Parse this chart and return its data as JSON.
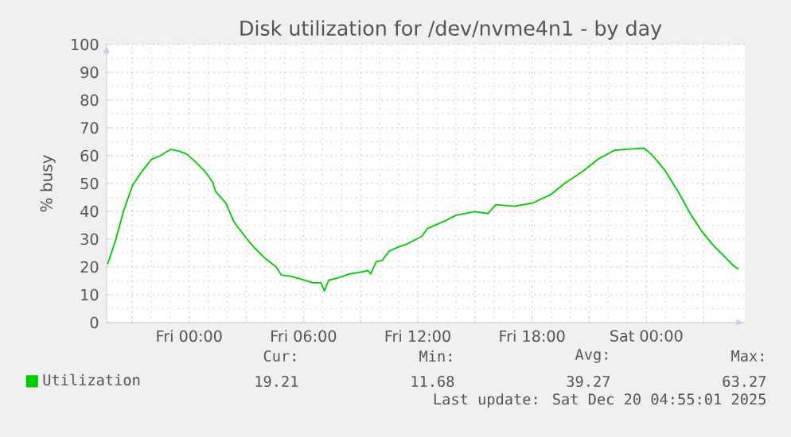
{
  "chart_data": {
    "type": "line",
    "title": "Disk utilization for /dev/nvme4n1 - by day",
    "ylabel": "% busy",
    "x": [
      "2025-12-18T19:43",
      "2025-12-18T20:08",
      "2025-12-18T20:33",
      "2025-12-18T21:02",
      "2025-12-18T21:31",
      "2025-12-18T22:01",
      "2025-12-18T22:29",
      "2025-12-18T23:02",
      "2025-12-18T23:27",
      "2025-12-18T23:52",
      "2025-12-19T00:17",
      "2025-12-19T00:50",
      "2025-12-19T01:14",
      "2025-12-19T01:23",
      "2025-12-19T01:56",
      "2025-12-19T02:21",
      "2025-12-19T02:59",
      "2025-12-19T03:27",
      "2025-12-19T04:01",
      "2025-12-19T04:34",
      "2025-12-19T04:50",
      "2025-12-19T05:23",
      "2025-12-19T06:05",
      "2025-12-19T06:29",
      "2025-12-19T06:55",
      "2025-12-19T07:06",
      "2025-12-19T07:19",
      "2025-12-19T07:52",
      "2025-12-19T08:26",
      "2025-12-19T08:59",
      "2025-12-19T09:23",
      "2025-12-19T09:32",
      "2025-12-19T09:49",
      "2025-12-19T10:08",
      "2025-12-19T10:30",
      "2025-12-19T10:59",
      "2025-12-19T11:23",
      "2025-12-19T12:13",
      "2025-12-19T12:30",
      "2025-12-19T13:28",
      "2025-12-19T14:01",
      "2025-12-19T14:59",
      "2025-12-19T15:41",
      "2025-12-19T16:06",
      "2025-12-19T17:04",
      "2025-12-19T18:02",
      "2025-12-19T19:01",
      "2025-12-19T19:42",
      "2025-12-19T20:40",
      "2025-12-19T21:30",
      "2025-12-19T22:20",
      "2025-12-19T23:10",
      "2025-12-19T23:52",
      "2025-12-20T00:16",
      "2025-12-20T00:58",
      "2025-12-20T01:40",
      "2025-12-20T02:21",
      "2025-12-20T02:54",
      "2025-12-20T03:28",
      "2025-12-20T04:09",
      "2025-12-20T04:34",
      "2025-12-20T04:50"
    ],
    "series": [
      {
        "name": "Utilization",
        "color": "#00cc00",
        "values": [
          21,
          29.5,
          40,
          49.5,
          54.3,
          58.7,
          60,
          62.3,
          61.7,
          60.6,
          58.1,
          54.3,
          50.5,
          47.2,
          42.9,
          36.2,
          30.5,
          26.7,
          22.9,
          20,
          17.1,
          16.6,
          15.2,
          14.3,
          14.3,
          11.4,
          15.2,
          16.2,
          17.5,
          18.1,
          18.7,
          17.5,
          21.9,
          22.4,
          25.7,
          27.2,
          28.1,
          31,
          33.8,
          36.7,
          38.6,
          39.9,
          39.2,
          42.4,
          41.8,
          43,
          46.2,
          50,
          54.4,
          58.9,
          62,
          62.4,
          62.7,
          60.5,
          54.8,
          47.1,
          38.6,
          32.9,
          28.1,
          23.4,
          20.5,
          19.2
        ]
      }
    ],
    "xlim": [
      "2025-12-18T19:40",
      "2025-12-20T05:10"
    ],
    "xticks": [
      {
        "value": "2025-12-18T21:00",
        "label": null
      },
      {
        "value": "2025-12-19T00:00",
        "label": "Fri 00:00"
      },
      {
        "value": "2025-12-19T03:00",
        "label": null
      },
      {
        "value": "2025-12-19T06:00",
        "label": "Fri 06:00"
      },
      {
        "value": "2025-12-19T09:00",
        "label": null
      },
      {
        "value": "2025-12-19T12:00",
        "label": "Fri 12:00"
      },
      {
        "value": "2025-12-19T15:00",
        "label": null
      },
      {
        "value": "2025-12-19T18:00",
        "label": "Fri 18:00"
      },
      {
        "value": "2025-12-19T21:00",
        "label": null
      },
      {
        "value": "2025-12-20T00:00",
        "label": "Sat 00:00"
      },
      {
        "value": "2025-12-20T03:00",
        "label": null
      }
    ],
    "ylim": [
      0,
      100
    ],
    "yticks": [
      0,
      10,
      20,
      30,
      40,
      50,
      60,
      70,
      80,
      90,
      100
    ],
    "grid": true,
    "legend": "bottom left",
    "marker": "none",
    "annotations": [
      "Cur:",
      "19.21",
      "Min:",
      "11.68",
      "Avg:",
      "39.27",
      "Max:",
      "63.27",
      "Last update: Sat Dec 20 04:55:01 2025"
    ]
  }
}
